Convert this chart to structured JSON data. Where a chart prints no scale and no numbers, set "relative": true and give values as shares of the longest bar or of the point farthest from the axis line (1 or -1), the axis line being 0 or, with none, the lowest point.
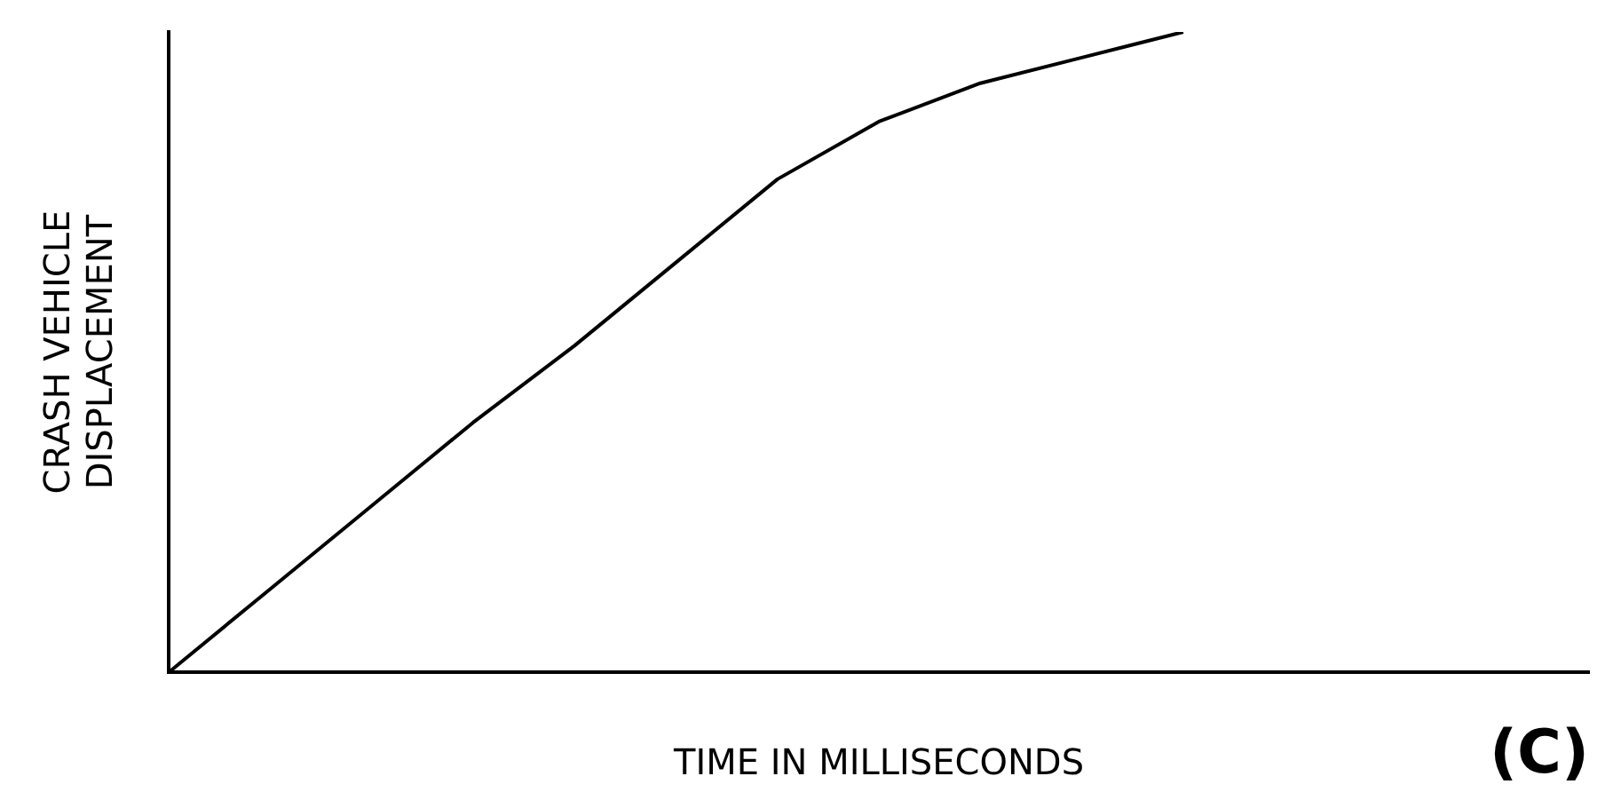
{
  "chart_data": {
    "type": "line",
    "relative": true,
    "xlabel": "TIME IN MILLISECONDS",
    "ylabel": "CRASH VEHICLE\nDISPLACEMENT",
    "annotations": [
      "(C)"
    ],
    "categories": [
      null,
      null,
      null,
      null,
      null,
      null,
      null,
      null,
      null,
      null,
      null,
      null,
      null,
      null,
      null
    ],
    "series": [
      {
        "color": "#000000",
        "values": [
          0,
          0.13,
          0.26,
          0.39,
          0.51,
          0.64,
          0.77,
          0.86,
          0.92,
          0.96,
          1,
          null,
          null,
          null,
          null
        ]
      }
    ],
    "grid": false,
    "legend": false,
    "marker": "none",
    "line_style": "solid"
  }
}
